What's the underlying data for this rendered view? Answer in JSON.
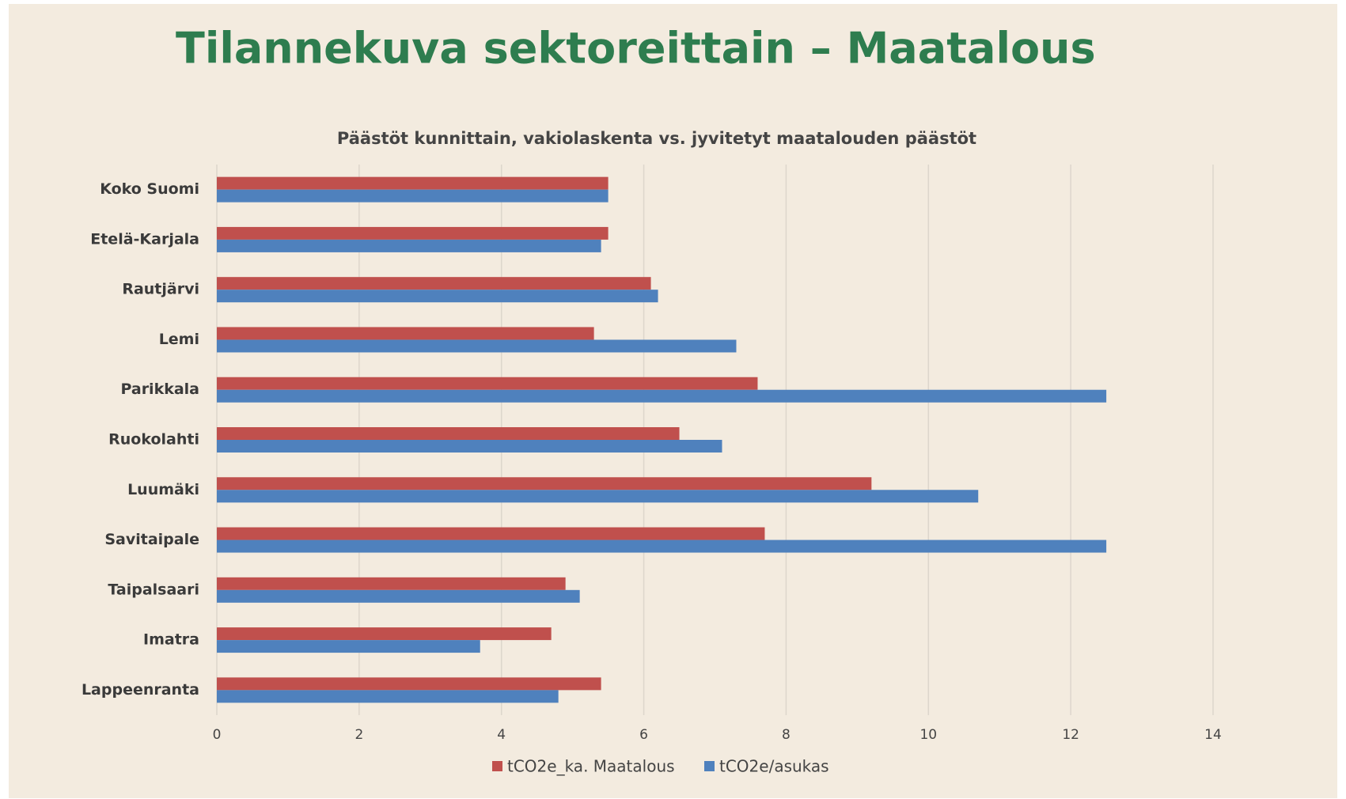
{
  "chart_data": {
    "type": "hbar",
    "title": "Tilannekuva sektoreittain – Maatalous",
    "subtitle": "Päästöt kunnittain, vakiolaskenta vs. jyvitetyt maatalouden päästöt",
    "categories": [
      "Koko Suomi",
      "Etelä-Karjala",
      "Rautjärvi",
      "Lemi",
      "Parikkala",
      "Ruokolahti",
      "Luumäki",
      "Savitaipale",
      "Taipalsaari",
      "Imatra",
      "Lappeenranta"
    ],
    "series": [
      {
        "name": "tCO2e_ka. Maatalous",
        "color": "#c0504d",
        "values": [
          5.5,
          5.5,
          6.1,
          5.3,
          7.6,
          6.5,
          9.2,
          7.7,
          4.9,
          4.7,
          5.4
        ]
      },
      {
        "name": "tCO2e/asukas",
        "color": "#4f81bd",
        "values": [
          5.5,
          5.4,
          6.2,
          7.3,
          12.5,
          7.1,
          10.7,
          12.5,
          5.1,
          3.7,
          4.8
        ]
      }
    ],
    "xlim": [
      0,
      14
    ],
    "xticks": [
      0,
      2,
      4,
      6,
      8,
      10,
      12,
      14
    ],
    "grid": true,
    "legend": "bottom"
  }
}
